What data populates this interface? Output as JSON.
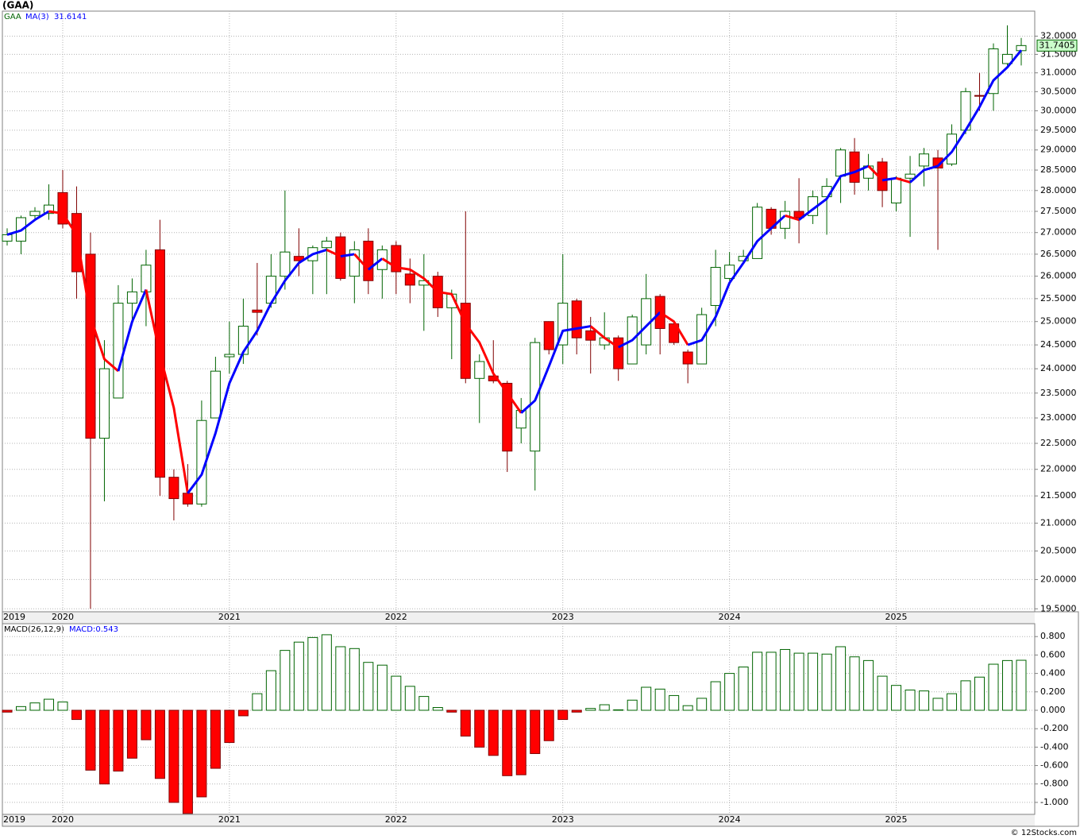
{
  "chart_data": [
    {
      "type": "candlestick",
      "title": "(GAA)",
      "name": "GAA",
      "log_scale": true,
      "grid": true,
      "up_color": "#006400",
      "down_color": "#ff0000",
      "categories": [
        "2019",
        null,
        null,
        null,
        "2020",
        null,
        null,
        null,
        null,
        null,
        null,
        null,
        null,
        null,
        null,
        null,
        "2021",
        null,
        null,
        null,
        null,
        null,
        null,
        null,
        null,
        null,
        null,
        null,
        "2022",
        null,
        null,
        null,
        null,
        null,
        null,
        null,
        null,
        null,
        null,
        null,
        "2023",
        null,
        null,
        null,
        null,
        null,
        null,
        null,
        null,
        null,
        null,
        null,
        "2024",
        null,
        null,
        null,
        null,
        null,
        null,
        null,
        null,
        null,
        null,
        null,
        "2025",
        null,
        null,
        null,
        null,
        null,
        null,
        null,
        null,
        null
      ],
      "open": [
        26.8,
        26.8,
        27.4,
        27.45,
        27.95,
        27.45,
        26.5,
        22.6,
        23.4,
        25.4,
        25.65,
        26.6,
        21.85,
        21.55,
        21.35,
        23.0,
        24.25,
        24.3,
        25.25,
        25.4,
        26.0,
        26.45,
        26.35,
        26.65,
        26.9,
        26.0,
        26.8,
        26.15,
        26.7,
        26.05,
        25.8,
        26.0,
        25.3,
        25.4,
        23.8,
        23.85,
        23.7,
        22.8,
        22.35,
        25.0,
        24.5,
        25.45,
        24.8,
        24.5,
        24.65,
        24.1,
        24.5,
        25.55,
        24.95,
        24.35,
        24.1,
        25.35,
        25.95,
        26.35,
        26.4,
        27.55,
        27.1,
        27.5,
        27.4,
        27.85,
        28.35,
        28.95,
        28.3,
        28.7,
        27.7,
        28.3,
        28.6,
        28.8,
        28.65,
        29.5,
        30.4,
        30.45,
        31.25,
        31.6
      ],
      "high": [
        27.1,
        27.4,
        27.6,
        28.15,
        28.5,
        28.1,
        27.0,
        24.6,
        25.8,
        25.95,
        26.6,
        27.3,
        22.0,
        22.1,
        23.35,
        24.25,
        25.0,
        25.5,
        26.3,
        26.5,
        28.0,
        27.1,
        26.7,
        26.9,
        27.0,
        26.8,
        27.1,
        26.7,
        26.8,
        26.4,
        26.5,
        26.1,
        25.7,
        27.5,
        24.3,
        24.6,
        23.75,
        23.4,
        24.65,
        25.0,
        26.5,
        25.5,
        25.1,
        25.2,
        24.7,
        25.15,
        26.05,
        25.6,
        25.0,
        24.4,
        25.3,
        26.6,
        26.55,
        26.6,
        27.7,
        27.6,
        27.75,
        28.3,
        28.0,
        28.3,
        29.05,
        29.3,
        28.9,
        28.8,
        28.35,
        28.85,
        29.05,
        29.0,
        29.65,
        30.6,
        31.0,
        31.8,
        32.3,
        31.95
      ],
      "low": [
        26.7,
        26.5,
        27.3,
        27.3,
        27.1,
        25.5,
        19.5,
        21.4,
        23.4,
        25.0,
        24.9,
        21.5,
        21.05,
        21.3,
        21.3,
        23.0,
        23.9,
        24.1,
        24.7,
        25.3,
        25.7,
        26.0,
        25.6,
        25.6,
        25.9,
        25.4,
        25.6,
        25.5,
        25.6,
        25.4,
        24.8,
        25.1,
        24.2,
        23.7,
        22.9,
        23.7,
        21.95,
        22.5,
        21.6,
        24.3,
        24.1,
        24.3,
        23.9,
        24.4,
        23.75,
        24.1,
        24.3,
        24.3,
        24.5,
        23.7,
        24.1,
        24.9,
        25.9,
        26.3,
        26.4,
        26.95,
        26.85,
        26.75,
        27.2,
        26.95,
        27.7,
        27.9,
        28.0,
        27.6,
        27.5,
        26.9,
        28.1,
        26.6,
        28.6,
        29.4,
        30.0,
        30.0,
        31.2,
        31.2
      ],
      "close": [
        26.95,
        27.35,
        27.5,
        27.65,
        27.2,
        26.1,
        22.6,
        24.0,
        25.4,
        25.65,
        26.25,
        21.85,
        21.45,
        21.35,
        22.95,
        23.95,
        24.3,
        24.9,
        25.2,
        26.0,
        26.55,
        26.35,
        26.65,
        26.8,
        25.95,
        26.6,
        25.9,
        26.6,
        26.1,
        25.8,
        25.9,
        25.3,
        25.6,
        23.8,
        24.15,
        23.75,
        22.35,
        23.15,
        24.55,
        24.4,
        25.4,
        24.65,
        24.6,
        24.65,
        24.0,
        25.1,
        25.5,
        24.85,
        24.55,
        24.1,
        25.15,
        26.2,
        26.25,
        26.45,
        27.6,
        27.1,
        27.5,
        27.35,
        27.85,
        28.1,
        29.0,
        28.2,
        28.6,
        28.0,
        28.3,
        28.4,
        28.9,
        28.55,
        29.4,
        30.5,
        30.38,
        31.65,
        31.5,
        31.7405
      ],
      "ma": {
        "name": "MA(3)",
        "up_color": "#0000ff",
        "down_color": "#ff0000",
        "values": [
          26.95,
          27.05,
          27.3,
          27.5,
          27.45,
          26.95,
          25.1,
          24.2,
          23.95,
          25.0,
          25.7,
          24.3,
          23.2,
          21.55,
          21.9,
          22.7,
          23.7,
          24.35,
          24.8,
          25.4,
          25.9,
          26.3,
          26.5,
          26.6,
          26.45,
          26.5,
          26.15,
          26.4,
          26.2,
          26.15,
          25.95,
          25.65,
          25.6,
          24.95,
          24.55,
          23.9,
          23.5,
          23.1,
          23.35,
          24.05,
          24.8,
          24.85,
          24.9,
          24.65,
          24.45,
          24.6,
          24.9,
          25.2,
          25.0,
          24.5,
          24.6,
          25.1,
          25.85,
          26.3,
          26.8,
          27.1,
          27.4,
          27.3,
          27.55,
          27.8,
          28.35,
          28.45,
          28.6,
          28.25,
          28.3,
          28.2,
          28.5,
          28.6,
          28.95,
          29.5,
          30.1,
          30.8,
          31.15,
          31.6141
        ]
      },
      "ylim": [
        19.45,
        32.7
      ],
      "yticks": [
        {
          "value": 19.5,
          "label": "19.5000"
        },
        {
          "value": 20.0,
          "label": "20.0000"
        },
        {
          "value": 20.5,
          "label": "20.5000"
        },
        {
          "value": 21.0,
          "label": "21.0000"
        },
        {
          "value": 21.5,
          "label": "21.5000"
        },
        {
          "value": 22.0,
          "label": "22.0000"
        },
        {
          "value": 22.5,
          "label": "22.5000"
        },
        {
          "value": 23.0,
          "label": "23.0000"
        },
        {
          "value": 23.5,
          "label": "23.5000"
        },
        {
          "value": 24.0,
          "label": "24.0000"
        },
        {
          "value": 24.5,
          "label": "24.5000"
        },
        {
          "value": 25.0,
          "label": "25.0000"
        },
        {
          "value": 25.5,
          "label": "25.5000"
        },
        {
          "value": 26.0,
          "label": "26.0000"
        },
        {
          "value": 26.5,
          "label": "26.5000"
        },
        {
          "value": 27.0,
          "label": "27.0000"
        },
        {
          "value": 27.5,
          "label": "27.5000"
        },
        {
          "value": 28.0,
          "label": "28.0000"
        },
        {
          "value": 28.5,
          "label": "28.5000"
        },
        {
          "value": 29.0,
          "label": "29.0000"
        },
        {
          "value": 29.5,
          "label": "29.5000"
        },
        {
          "value": 30.0,
          "label": "30.0000"
        },
        {
          "value": 30.5,
          "label": "30.5000"
        },
        {
          "value": 31.0,
          "label": "31.0000"
        },
        {
          "value": 31.5,
          "label": "31.5000"
        },
        {
          "value": 32.0,
          "label": "32.0000"
        }
      ]
    },
    {
      "type": "bar",
      "title": "MACD(26,12,9)",
      "legend": "MACD:0.543",
      "grid": true,
      "up_color": "#006400",
      "down_color": "#ff0000",
      "values": [
        -0.02,
        0.04,
        0.08,
        0.12,
        0.09,
        -0.1,
        -0.65,
        -0.8,
        -0.66,
        -0.52,
        -0.32,
        -0.74,
        -1.0,
        -1.12,
        -0.94,
        -0.63,
        -0.35,
        -0.06,
        0.18,
        0.43,
        0.65,
        0.74,
        0.79,
        0.82,
        0.69,
        0.67,
        0.52,
        0.49,
        0.37,
        0.26,
        0.15,
        0.03,
        -0.02,
        -0.28,
        -0.4,
        -0.49,
        -0.71,
        -0.7,
        -0.47,
        -0.33,
        -0.1,
        -0.02,
        0.02,
        0.06,
        0.005,
        0.11,
        0.25,
        0.23,
        0.16,
        0.05,
        0.13,
        0.31,
        0.4,
        0.47,
        0.63,
        0.63,
        0.66,
        0.62,
        0.62,
        0.61,
        0.69,
        0.58,
        0.54,
        0.37,
        0.27,
        0.22,
        0.21,
        0.13,
        0.18,
        0.32,
        0.36,
        0.5,
        0.54,
        0.543
      ],
      "ylim": [
        -1.13,
        0.94
      ],
      "yticks": [
        {
          "value": 0.8,
          "label": "0.800"
        },
        {
          "value": 0.6,
          "label": "0.600"
        },
        {
          "value": 0.4,
          "label": "0.400"
        },
        {
          "value": 0.2,
          "label": "0.200"
        },
        {
          "value": 0,
          "label": "0.000"
        },
        {
          "value": -0.2,
          "label": "-0.200"
        },
        {
          "value": -0.4,
          "label": "-0.400"
        },
        {
          "value": -0.6,
          "label": "-0.600"
        },
        {
          "value": -0.8,
          "label": "-0.800"
        },
        {
          "value": -1.0,
          "label": "-1.000"
        }
      ]
    }
  ],
  "footer": "© 12Stocks.com"
}
